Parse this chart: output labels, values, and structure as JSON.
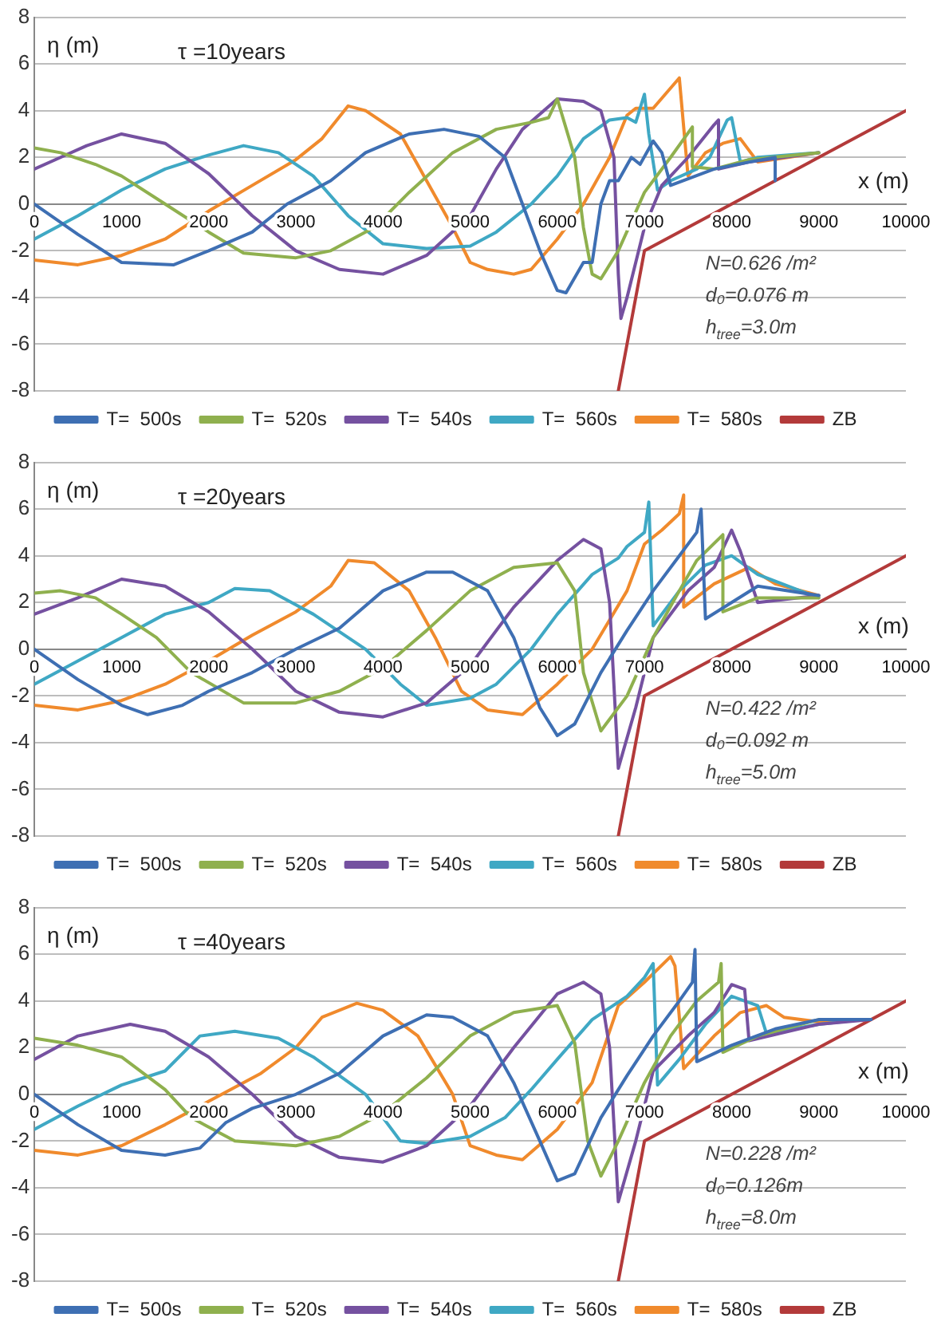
{
  "chart_data": [
    {
      "type": "line",
      "title": "τ =10years",
      "xlabel": "x (m)",
      "ylabel": "η (m)",
      "annotations": [
        "N=0.626 /m²",
        "d₀=0.076 m",
        "h$_{tree}$=3.0m"
      ],
      "xlim": [
        0,
        10000
      ],
      "xticks": [
        0,
        1000,
        2000,
        3000,
        4000,
        5000,
        6000,
        7000,
        8000,
        9000,
        10000
      ],
      "ylim": [
        -8,
        8
      ],
      "yticks": [
        -8,
        -6,
        -4,
        -2,
        0,
        2,
        4,
        6,
        8
      ],
      "grid": "y",
      "legend": "bottom",
      "marker": "none",
      "series": [
        {
          "name": "T=  500s",
          "color": "#3e6fb3",
          "x": [
            0,
            500,
            1000,
            1600,
            2000,
            2500,
            2900,
            3400,
            3800,
            4300,
            4700,
            5100,
            5400,
            5600,
            5800,
            6000,
            6100,
            6300,
            6400,
            6500,
            6600,
            6700,
            6850,
            6950,
            7100,
            7200,
            7300,
            7800,
            8200,
            8500,
            8500
          ],
          "values": [
            0,
            -1.3,
            -2.5,
            -2.6,
            -2.0,
            -1.2,
            0,
            1,
            2.2,
            3.0,
            3.2,
            2.9,
            2,
            0,
            -2,
            -3.7,
            -3.8,
            -2.5,
            -2.5,
            0,
            1,
            1,
            2,
            1.7,
            2.7,
            2.2,
            0.8,
            1.5,
            1.8,
            2.0,
            1.0
          ]
        },
        {
          "name": "T=  520s",
          "color": "#8fb04e",
          "x": [
            0,
            300,
            700,
            1000,
            1500,
            2000,
            2400,
            3000,
            3400,
            3900,
            4300,
            4800,
            5300,
            5700,
            5900,
            6000,
            6200,
            6300,
            6400,
            6500,
            6700,
            7000,
            7300,
            7550,
            7550,
            7800,
            8200,
            9000
          ],
          "values": [
            2.4,
            2.2,
            1.7,
            1.2,
            0,
            -1.2,
            -2.1,
            -2.3,
            -2.0,
            -1.0,
            0.5,
            2.2,
            3.2,
            3.5,
            3.7,
            4.5,
            2,
            -1,
            -3,
            -3.2,
            -2,
            0.5,
            2,
            3.3,
            1.6,
            1.5,
            1.9,
            2.2
          ]
        },
        {
          "name": "T=  540s",
          "color": "#7551a0",
          "x": [
            0,
            300,
            600,
            1000,
            1500,
            2000,
            2500,
            3000,
            3500,
            4000,
            4500,
            5000,
            5300,
            5600,
            6000,
            6300,
            6500,
            6650,
            6700,
            6730,
            6800,
            7000,
            7200,
            7500,
            7800,
            7850,
            7850,
            8200,
            9000
          ],
          "values": [
            1.5,
            2.0,
            2.5,
            3.0,
            2.6,
            1.3,
            -0.5,
            -2.0,
            -2.8,
            -3.0,
            -2.2,
            -0.5,
            1.5,
            3.2,
            4.5,
            4.4,
            4.0,
            2,
            -3,
            -4.9,
            -4,
            -1,
            0.8,
            2,
            3.4,
            3.6,
            1.5,
            1.8,
            2.2
          ]
        },
        {
          "name": "T=  560s",
          "color": "#3fa8c4",
          "x": [
            0,
            500,
            1000,
            1500,
            2000,
            2400,
            2800,
            3200,
            3600,
            4000,
            4500,
            5000,
            5300,
            5700,
            6000,
            6300,
            6600,
            6800,
            6900,
            7000,
            7050,
            7150,
            7300,
            7600,
            7750,
            7950,
            8000,
            8100,
            8300,
            9000
          ],
          "values": [
            -1.5,
            -0.5,
            0.6,
            1.5,
            2.1,
            2.5,
            2.2,
            1.2,
            -0.5,
            -1.7,
            -1.9,
            -1.8,
            -1.2,
            0,
            1.2,
            2.8,
            3.6,
            3.7,
            3.5,
            4.7,
            3,
            0.6,
            1,
            1.5,
            2,
            3.6,
            3.7,
            1.8,
            2,
            2.2
          ]
        },
        {
          "name": "T=  580s",
          "color": "#f08a2c",
          "x": [
            0,
            500,
            1000,
            1500,
            2000,
            2500,
            3000,
            3300,
            3600,
            3800,
            4200,
            4500,
            4800,
            5000,
            5200,
            5500,
            5700,
            6000,
            6300,
            6600,
            6800,
            6900,
            7100,
            7400,
            7500,
            7700,
            7900,
            8100,
            8300,
            9000
          ],
          "values": [
            -2.4,
            -2.6,
            -2.2,
            -1.5,
            -0.3,
            0.8,
            1.9,
            2.8,
            4.2,
            4.0,
            3.0,
            1.0,
            -1,
            -2.5,
            -2.8,
            -3.0,
            -2.8,
            -1.5,
            0,
            2,
            3.8,
            4.1,
            4.1,
            5.4,
            1.2,
            2.2,
            2.6,
            2.8,
            1.8,
            2.2
          ]
        },
        {
          "name": "ZB",
          "color": "#b33a3a",
          "x": [
            6700,
            7000,
            10000
          ],
          "values": [
            -8,
            -2,
            4
          ]
        }
      ]
    },
    {
      "type": "line",
      "title": "τ =20years",
      "xlabel": "x (m)",
      "ylabel": "η (m)",
      "annotations": [
        "N=0.422 /m²",
        "d₀=0.092 m",
        "h$_{tree}$=5.0m"
      ],
      "xlim": [
        0,
        10000
      ],
      "xticks": [
        0,
        1000,
        2000,
        3000,
        4000,
        5000,
        6000,
        7000,
        8000,
        9000,
        10000
      ],
      "ylim": [
        -8,
        8
      ],
      "yticks": [
        -8,
        -6,
        -4,
        -2,
        0,
        2,
        4,
        6,
        8
      ],
      "grid": "y",
      "legend": "bottom",
      "marker": "none",
      "series": [
        {
          "name": "T=  500s",
          "color": "#3e6fb3",
          "x": [
            0,
            500,
            1000,
            1300,
            1700,
            2000,
            2500,
            3000,
            3500,
            4000,
            4500,
            4800,
            5200,
            5500,
            5800,
            6000,
            6200,
            6500,
            6800,
            7100,
            7400,
            7600,
            7650,
            7700,
            8000,
            8300,
            9000
          ],
          "values": [
            0,
            -1.3,
            -2.4,
            -2.8,
            -2.4,
            -1.8,
            -1.0,
            0,
            0.9,
            2.5,
            3.3,
            3.3,
            2.5,
            0.5,
            -2.5,
            -3.7,
            -3.2,
            -1,
            0.8,
            2.5,
            4,
            5,
            6,
            1.3,
            2,
            2.7,
            2.3
          ]
        },
        {
          "name": "T=  520s",
          "color": "#8fb04e",
          "x": [
            0,
            300,
            700,
            1000,
            1400,
            1800,
            2400,
            3000,
            3500,
            4000,
            4500,
            5000,
            5500,
            6000,
            6200,
            6300,
            6500,
            6800,
            7100,
            7400,
            7600,
            7900,
            7900,
            8300,
            9000
          ],
          "values": [
            2.4,
            2.5,
            2.2,
            1.5,
            0.5,
            -1,
            -2.3,
            -2.3,
            -1.8,
            -0.8,
            0.8,
            2.5,
            3.5,
            3.7,
            2.5,
            -1,
            -3.5,
            -2,
            0.5,
            2.5,
            3.8,
            4.9,
            1.6,
            2.2,
            2.2
          ]
        },
        {
          "name": "T=  540s",
          "color": "#7551a0",
          "x": [
            0,
            500,
            1000,
            1500,
            2000,
            2500,
            3000,
            3500,
            4000,
            4500,
            5000,
            5500,
            6000,
            6300,
            6500,
            6600,
            6700,
            6900,
            7100,
            7500,
            7800,
            8000,
            8100,
            8300,
            9000
          ],
          "values": [
            1.5,
            2.2,
            3.0,
            2.7,
            1.6,
            0,
            -1.8,
            -2.7,
            -2.9,
            -2.3,
            -0.7,
            1.8,
            3.8,
            4.7,
            4.3,
            2,
            -5.1,
            -2.5,
            0.5,
            2.5,
            3.5,
            5.1,
            4.2,
            2,
            2.3
          ]
        },
        {
          "name": "T=  560s",
          "color": "#3fa8c4",
          "x": [
            0,
            500,
            1000,
            1500,
            2000,
            2300,
            2700,
            3200,
            3800,
            4200,
            4500,
            5000,
            5300,
            5700,
            6000,
            6400,
            6700,
            6800,
            7000,
            7050,
            7100,
            7400,
            7700,
            8000,
            8300,
            9000
          ],
          "values": [
            -1.5,
            -0.5,
            0.5,
            1.5,
            2.0,
            2.6,
            2.5,
            1.5,
            0,
            -1.5,
            -2.4,
            -2.1,
            -1.5,
            0,
            1.5,
            3.2,
            3.9,
            4.4,
            5,
            6.3,
            1,
            2.5,
            3.6,
            4,
            3.2,
            2.2
          ]
        },
        {
          "name": "T=  580s",
          "color": "#f08a2c",
          "x": [
            0,
            500,
            1000,
            1500,
            2000,
            2500,
            3000,
            3400,
            3600,
            3900,
            4300,
            4600,
            4900,
            5200,
            5600,
            6000,
            6400,
            6800,
            7000,
            7200,
            7400,
            7450,
            7450,
            7800,
            8200,
            8500,
            9000
          ],
          "values": [
            -2.4,
            -2.6,
            -2.2,
            -1.5,
            -0.5,
            0.6,
            1.6,
            2.7,
            3.8,
            3.7,
            2.5,
            0.5,
            -1.8,
            -2.6,
            -2.8,
            -1.5,
            0,
            2.5,
            4.5,
            5.1,
            5.8,
            6.6,
            1.8,
            2.8,
            3.5,
            2.8,
            2.3
          ]
        },
        {
          "name": "ZB",
          "color": "#b33a3a",
          "x": [
            6700,
            7000,
            10000
          ],
          "values": [
            -8,
            -2,
            4
          ]
        }
      ]
    },
    {
      "type": "line",
      "title": "τ =40years",
      "xlabel": "x (m)",
      "ylabel": "η (m)",
      "annotations": [
        "N=0.228 /m²",
        "d₀=0.126m",
        "h$_{tree}$=8.0m"
      ],
      "xlim": [
        0,
        10000
      ],
      "xticks": [
        0,
        1000,
        2000,
        3000,
        4000,
        5000,
        6000,
        7000,
        8000,
        9000,
        10000
      ],
      "ylim": [
        -8,
        8
      ],
      "yticks": [
        -8,
        -6,
        -4,
        -2,
        0,
        2,
        4,
        6,
        8
      ],
      "grid": "y",
      "legend": "bottom",
      "marker": "none",
      "series": [
        {
          "name": "T=  500s",
          "color": "#3e6fb3",
          "x": [
            0,
            500,
            1000,
            1500,
            1900,
            2200,
            2500,
            3000,
            3500,
            4000,
            4500,
            4800,
            5200,
            5500,
            5800,
            6000,
            6200,
            6500,
            6800,
            7100,
            7400,
            7550,
            7580,
            7600,
            8000,
            8500,
            9000,
            9600
          ],
          "values": [
            0,
            -1.3,
            -2.4,
            -2.6,
            -2.3,
            -1.2,
            -0.6,
            0,
            0.9,
            2.5,
            3.4,
            3.3,
            2.5,
            0.5,
            -2,
            -3.7,
            -3.4,
            -1,
            0.8,
            2.5,
            4,
            4.8,
            6.2,
            1.4,
            2.1,
            2.8,
            3.2,
            3.2
          ]
        },
        {
          "name": "T=  520s",
          "color": "#8fb04e",
          "x": [
            0,
            500,
            1000,
            1500,
            1800,
            2300,
            3000,
            3500,
            4000,
            4500,
            5000,
            5500,
            6000,
            6200,
            6350,
            6500,
            6700,
            7000,
            7300,
            7600,
            7850,
            7880,
            7900,
            8300,
            9000,
            9500
          ],
          "values": [
            2.4,
            2.1,
            1.6,
            0.2,
            -1,
            -2,
            -2.2,
            -1.8,
            -0.8,
            0.7,
            2.5,
            3.5,
            3.8,
            2.2,
            -2,
            -3.5,
            -2,
            0.5,
            2.5,
            4,
            4.8,
            5.6,
            1.8,
            2.5,
            3.2,
            3.2
          ]
        },
        {
          "name": "T=  540s",
          "color": "#7551a0",
          "x": [
            0,
            500,
            1100,
            1500,
            2000,
            2500,
            3000,
            3500,
            4000,
            4500,
            5000,
            5500,
            6000,
            6300,
            6500,
            6600,
            6700,
            6900,
            7100,
            7500,
            7800,
            8000,
            8150,
            8200,
            9000,
            9600
          ],
          "values": [
            1.5,
            2.5,
            3.0,
            2.7,
            1.6,
            0,
            -1.8,
            -2.7,
            -2.9,
            -2.2,
            -0.5,
            2,
            4.3,
            4.8,
            4.3,
            2,
            -4.6,
            -2,
            1,
            2.5,
            3.5,
            4.7,
            4.5,
            2.3,
            3,
            3.2
          ]
        },
        {
          "name": "T=  560s",
          "color": "#3fa8c4",
          "x": [
            0,
            500,
            1000,
            1500,
            1900,
            2300,
            2800,
            3200,
            3800,
            4200,
            4500,
            5000,
            5400,
            5700,
            6000,
            6400,
            6800,
            7000,
            7100,
            7150,
            7400,
            7700,
            8000,
            8300,
            8400,
            9000,
            9500
          ],
          "values": [
            -1.5,
            -0.5,
            0.4,
            1.0,
            2.5,
            2.7,
            2.4,
            1.6,
            0,
            -2,
            -2.1,
            -1.8,
            -1,
            0.2,
            1.5,
            3.2,
            4.2,
            5,
            5.6,
            0.4,
            1.5,
            3,
            4.2,
            3.8,
            2.6,
            3,
            3.2
          ]
        },
        {
          "name": "T=  580s",
          "color": "#f08a2c",
          "x": [
            0,
            500,
            1000,
            1500,
            2000,
            2600,
            3000,
            3300,
            3700,
            4000,
            4400,
            4800,
            5000,
            5300,
            5600,
            6000,
            6400,
            6700,
            7000,
            7300,
            7350,
            7450,
            7800,
            8100,
            8400,
            8600,
            9000,
            9500
          ],
          "values": [
            -2.4,
            -2.6,
            -2.2,
            -1.3,
            -0.3,
            0.9,
            2.0,
            3.3,
            3.9,
            3.6,
            2.5,
            0,
            -2.2,
            -2.6,
            -2.8,
            -1.5,
            0.5,
            3.8,
            4.8,
            5.9,
            5.5,
            1.1,
            2.5,
            3.5,
            3.8,
            3.3,
            3.1,
            3.2
          ]
        },
        {
          "name": "ZB",
          "color": "#b33a3a",
          "x": [
            6700,
            7000,
            10000
          ],
          "values": [
            -8,
            -2,
            4
          ]
        }
      ]
    }
  ]
}
